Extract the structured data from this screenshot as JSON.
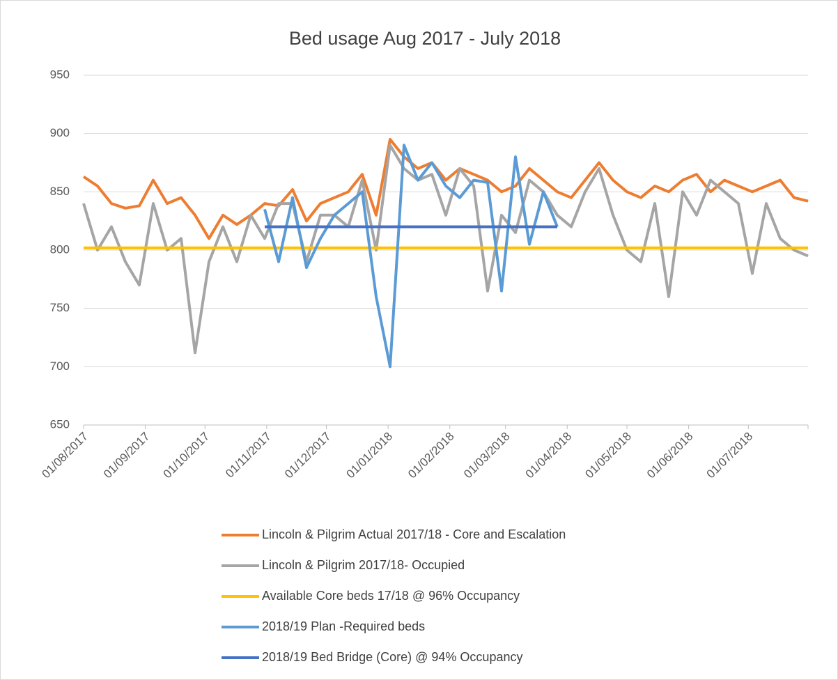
{
  "chart_data": {
    "type": "line",
    "title": "Bed usage Aug 2017 - July 2018",
    "x": [
      "01/08/2017",
      "08/08/2017",
      "15/08/2017",
      "22/08/2017",
      "29/08/2017",
      "05/09/2017",
      "12/09/2017",
      "19/09/2017",
      "26/09/2017",
      "03/10/2017",
      "10/10/2017",
      "17/10/2017",
      "24/10/2017",
      "31/10/2017",
      "07/11/2017",
      "14/11/2017",
      "21/11/2017",
      "28/11/2017",
      "05/12/2017",
      "12/12/2017",
      "19/12/2017",
      "26/12/2017",
      "02/01/2018",
      "09/01/2018",
      "16/01/2018",
      "23/01/2018",
      "30/01/2018",
      "06/02/2018",
      "13/02/2018",
      "20/02/2018",
      "27/02/2018",
      "06/03/2018",
      "13/03/2018",
      "20/03/2018",
      "27/03/2018",
      "03/04/2018",
      "10/04/2018",
      "17/04/2018",
      "24/04/2018",
      "01/05/2018",
      "08/05/2018",
      "15/05/2018",
      "22/05/2018",
      "29/05/2018",
      "05/06/2018",
      "12/06/2018",
      "19/06/2018",
      "26/06/2018",
      "03/07/2018",
      "10/07/2018",
      "17/07/2018",
      "24/07/2018",
      "31/07/2018"
    ],
    "series": [
      {
        "name": "Lincoln & Pilgrim Actual 2017/18 - Core and Escalation",
        "color": "#ED7D31",
        "values": [
          863,
          855,
          840,
          836,
          838,
          860,
          840,
          845,
          830,
          810,
          830,
          822,
          830,
          840,
          838,
          852,
          825,
          840,
          845,
          850,
          865,
          830,
          895,
          880,
          870,
          875,
          860,
          870,
          865,
          860,
          850,
          855,
          870,
          860,
          850,
          845,
          860,
          875,
          860,
          850,
          845,
          855,
          850,
          860,
          865,
          850,
          860,
          855,
          850,
          855,
          860,
          845,
          842
        ]
      },
      {
        "name": "Lincoln & Pilgrim 2017/18- Occupied",
        "color": "#A5A5A5",
        "values": [
          840,
          800,
          820,
          790,
          770,
          840,
          800,
          810,
          712,
          790,
          820,
          790,
          830,
          810,
          840,
          840,
          790,
          830,
          830,
          820,
          860,
          800,
          890,
          870,
          860,
          865,
          830,
          870,
          855,
          765,
          830,
          815,
          860,
          850,
          830,
          820,
          850,
          870,
          830,
          800,
          790,
          840,
          760,
          850,
          830,
          860,
          850,
          840,
          780,
          840,
          810,
          800,
          795
        ]
      },
      {
        "name": "Available Core beds 17/18 @ 96% Occupancy",
        "color": "#FFC000",
        "values": [
          802,
          802,
          802,
          802,
          802,
          802,
          802,
          802,
          802,
          802,
          802,
          802,
          802,
          802,
          802,
          802,
          802,
          802,
          802,
          802,
          802,
          802,
          802,
          802,
          802,
          802,
          802,
          802,
          802,
          802,
          802,
          802,
          802,
          802,
          802,
          802,
          802,
          802,
          802,
          802,
          802,
          802,
          802,
          802,
          802,
          802,
          802,
          802,
          802,
          802,
          802,
          802,
          802
        ]
      },
      {
        "name": "2018/19 Plan -Required beds",
        "color": "#5B9BD5",
        "values": [
          null,
          null,
          null,
          null,
          null,
          null,
          null,
          null,
          null,
          null,
          null,
          null,
          null,
          835,
          790,
          845,
          785,
          810,
          830,
          840,
          850,
          760,
          700,
          890,
          860,
          875,
          855,
          845,
          860,
          858,
          765,
          880,
          805,
          850,
          820,
          null,
          null,
          null,
          null,
          null,
          null,
          null,
          null,
          null,
          null,
          null,
          null,
          null,
          null,
          null,
          null,
          null,
          null
        ]
      },
      {
        "name": "2018/19 Bed Bridge (Core) @ 94% Occupancy",
        "color": "#4472C4",
        "values": [
          null,
          null,
          null,
          null,
          null,
          null,
          null,
          null,
          null,
          null,
          null,
          null,
          null,
          820,
          820,
          820,
          820,
          820,
          820,
          820,
          820,
          820,
          820,
          820,
          820,
          820,
          820,
          820,
          820,
          820,
          820,
          820,
          820,
          820,
          820,
          null,
          null,
          null,
          null,
          null,
          null,
          null,
          null,
          null,
          null,
          null,
          null,
          null,
          null,
          null,
          null,
          null,
          null
        ]
      }
    ],
    "xlim": [
      "01/08/2017",
      "31/07/2018"
    ],
    "xticks": [
      "01/08/2017",
      "01/09/2017",
      "01/10/2017",
      "01/11/2017",
      "01/12/2017",
      "01/01/2018",
      "01/02/2018",
      "01/03/2018",
      "01/04/2018",
      "01/05/2018",
      "01/06/2018",
      "01/07/2018"
    ],
    "ylim": [
      650,
      950
    ],
    "yticks": [
      650,
      700,
      750,
      800,
      850,
      900,
      950
    ],
    "grid": true
  }
}
